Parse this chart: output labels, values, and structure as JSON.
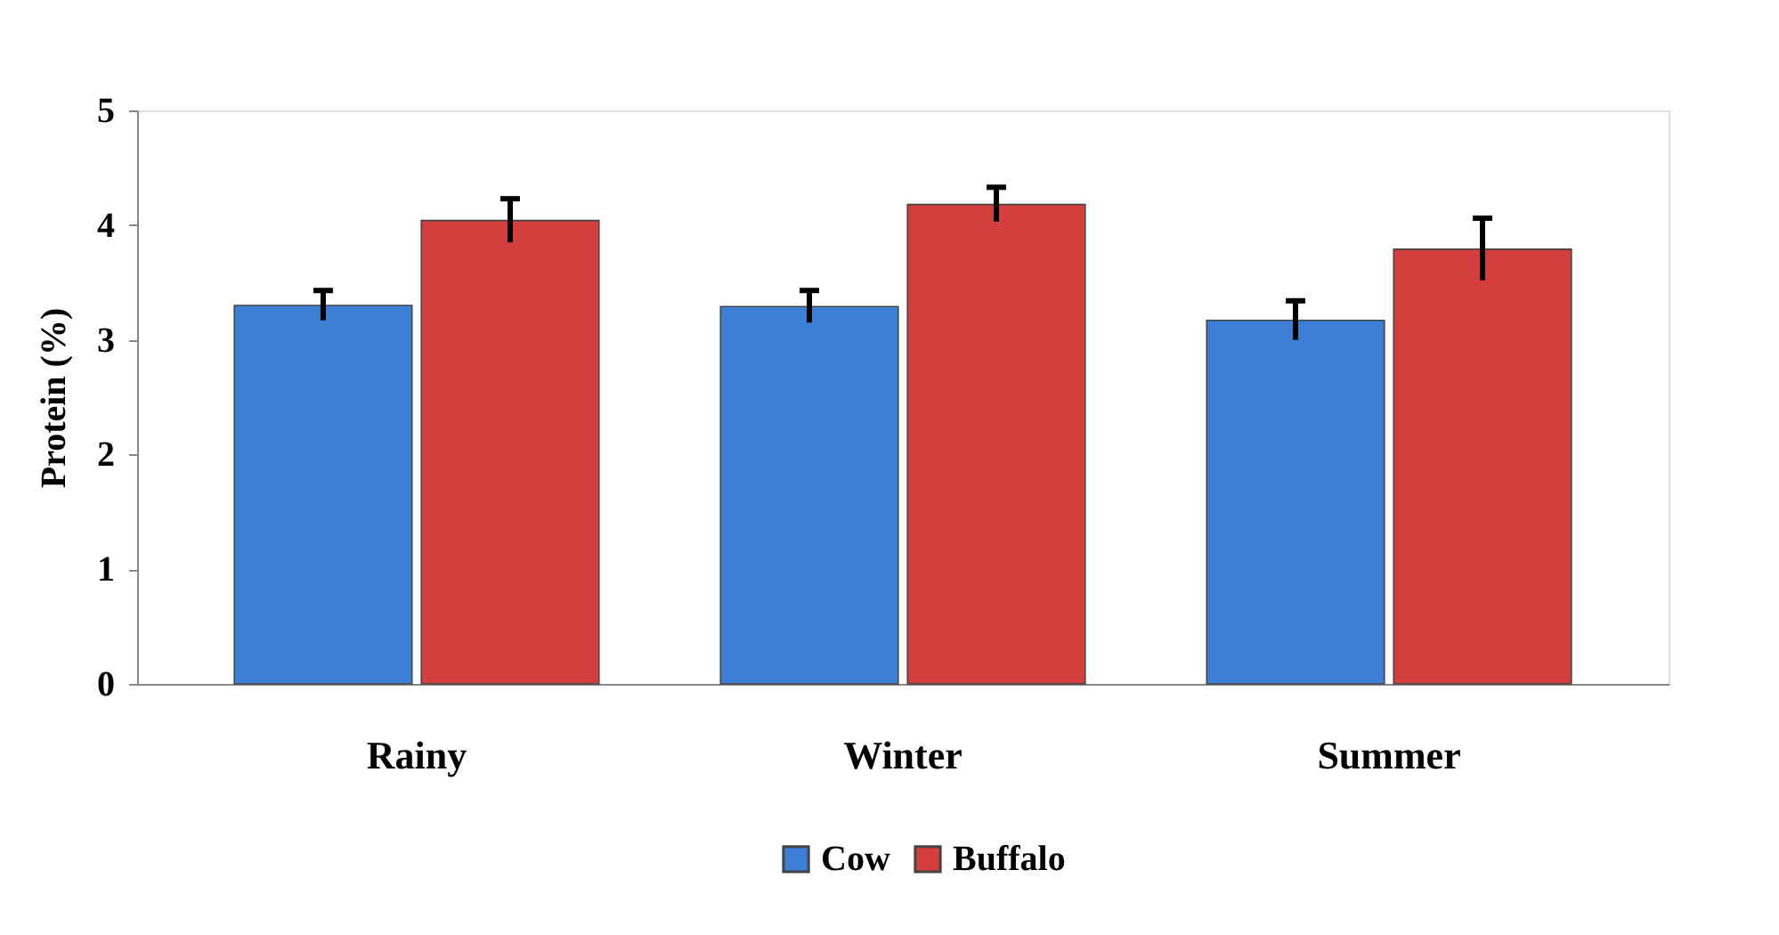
{
  "chart_data": {
    "type": "bar",
    "ylabel": "Protein (%)",
    "categories": [
      "Rainy",
      "Winter",
      "Summer"
    ],
    "series": [
      {
        "name": "Cow",
        "color": "#3c7fd4",
        "values": [
          3.3,
          3.29,
          3.17
        ],
        "errors": [
          0.13,
          0.14,
          0.17
        ]
      },
      {
        "name": "Buffalo",
        "color": "#d43f3d",
        "values": [
          4.04,
          4.18,
          3.79
        ],
        "errors": [
          0.19,
          0.15,
          0.27
        ]
      }
    ],
    "ylim": [
      0,
      5
    ],
    "yticks": [
      0,
      1,
      2,
      3,
      4,
      5
    ],
    "grid": false,
    "legend": "bottom"
  }
}
